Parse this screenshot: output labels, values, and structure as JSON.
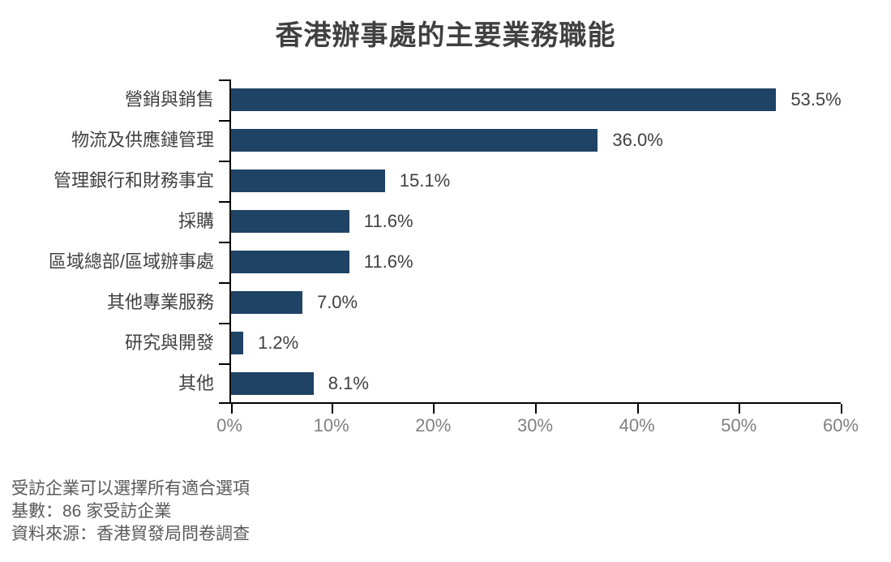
{
  "chart_data": {
    "type": "bar",
    "orientation": "horizontal",
    "title": "香港辦事處的主要業務職能",
    "categories": [
      "營銷與銷售",
      "物流及供應鏈管理",
      "管理銀行和財務事宜",
      "採購",
      "區域總部/區域辦事處",
      "其他專業服務",
      "研究與開發",
      "其他"
    ],
    "values": [
      53.5,
      36.0,
      15.1,
      11.6,
      11.6,
      7.0,
      1.2,
      8.1
    ],
    "value_labels": [
      "53.5%",
      "36.0%",
      "15.1%",
      "11.6%",
      "11.6%",
      "7.0%",
      "1.2%",
      "8.1%"
    ],
    "xlabel": "",
    "ylabel": "",
    "xlim": [
      0,
      60
    ],
    "x_tick_step": 10,
    "x_tick_labels": [
      "0%",
      "10%",
      "20%",
      "30%",
      "40%",
      "50%",
      "60%"
    ],
    "grid": false,
    "legend": false,
    "bar_color": "#1F4365",
    "axis_color": "#000000",
    "label_color": "#404040",
    "tick_label_color": "#808080"
  },
  "footnotes": {
    "line1": "受訪企業可以選擇所有適合選項",
    "line2": "基數：86 家受訪企業",
    "line3": "資料來源：香港貿發局問卷調查"
  }
}
